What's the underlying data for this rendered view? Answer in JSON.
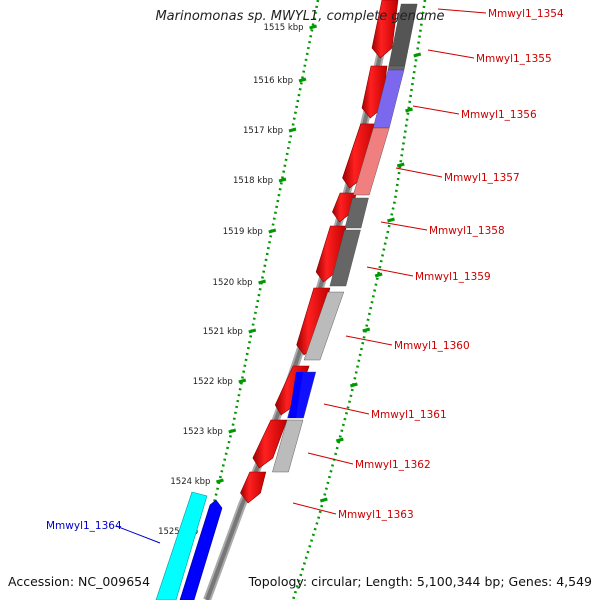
{
  "title": "Marinomonas sp. MWYL1, complete genome",
  "accession": "Accession: NC_009654",
  "topology": "Topology: circular; Length: 5,100,344 bp; Genes: 4,549",
  "ticks": [
    "1515 kbp",
    "1516 kbp",
    "1517 kbp",
    "1518 kbp",
    "1519 kbp",
    "1520 kbp",
    "1521 kbp",
    "1522 kbp",
    "1523 kbp",
    "1524 kbp",
    "1525 kbp"
  ],
  "colors": {
    "cds": "#ff0000",
    "reverse_cds": "#0000ff",
    "forward_label": "#cc0000",
    "reverse_label": "#0000cc",
    "tick_dots": "#009900",
    "backbone": "#777777"
  },
  "genes": [
    {
      "label": "Mmwyl1_1354",
      "strand": "forward",
      "cog_color": "#555555"
    },
    {
      "label": "Mmwyl1_1355",
      "strand": "forward",
      "cog_color": "#666666"
    },
    {
      "label": "Mmwyl1_1356",
      "strand": "forward",
      "cog_color": "#7b68ee"
    },
    {
      "label": "Mmwyl1_1357",
      "strand": "forward",
      "cog_color": "#f08080"
    },
    {
      "label": "Mmwyl1_1358",
      "strand": "forward",
      "cog_color": "#666666"
    },
    {
      "label": "Mmwyl1_1359",
      "strand": "forward",
      "cog_color": "#666666"
    },
    {
      "label": "Mmwyl1_1360",
      "strand": "forward",
      "cog_color": "#bbbbbb"
    },
    {
      "label": "Mmwyl1_1361",
      "strand": "forward",
      "cog_color": "#1010ff"
    },
    {
      "label": "Mmwyl1_1362",
      "strand": "forward",
      "cog_color": "#bbbbbb"
    },
    {
      "label": "Mmwyl1_1363",
      "strand": "forward",
      "cog_color": "#ff0000"
    },
    {
      "label": "Mmwyl1_1364",
      "strand": "reverse",
      "cog_color": "#00ffff"
    }
  ]
}
